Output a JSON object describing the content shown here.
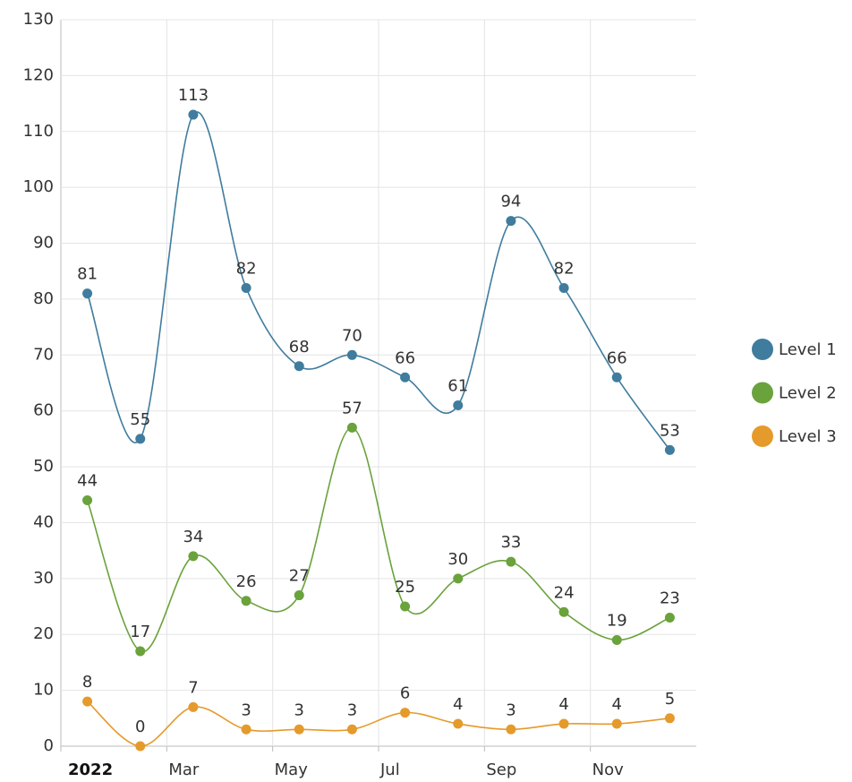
{
  "chart_data": {
    "type": "line",
    "categories": [
      "2022",
      null,
      "Mar",
      null,
      "May",
      null,
      "Jul",
      null,
      "Sep",
      null,
      "Nov",
      null
    ],
    "series": [
      {
        "name": "Level 1",
        "color": "#3f7c9e",
        "values": [
          81,
          55,
          113,
          82,
          68,
          70,
          66,
          61,
          94,
          82,
          66,
          53
        ]
      },
      {
        "name": "Level 2",
        "color": "#6aa23c",
        "values": [
          44,
          17,
          34,
          26,
          27,
          57,
          25,
          30,
          33,
          24,
          19,
          23
        ]
      },
      {
        "name": "Level 3",
        "color": "#e59a2c",
        "values": [
          8,
          0,
          7,
          3,
          3,
          3,
          6,
          4,
          3,
          4,
          4,
          5
        ]
      }
    ],
    "ylim": [
      0,
      130
    ],
    "yticks": [
      0,
      10,
      20,
      30,
      40,
      50,
      60,
      70,
      80,
      90,
      100,
      110,
      120,
      130
    ],
    "grid": true,
    "legend": "right"
  }
}
